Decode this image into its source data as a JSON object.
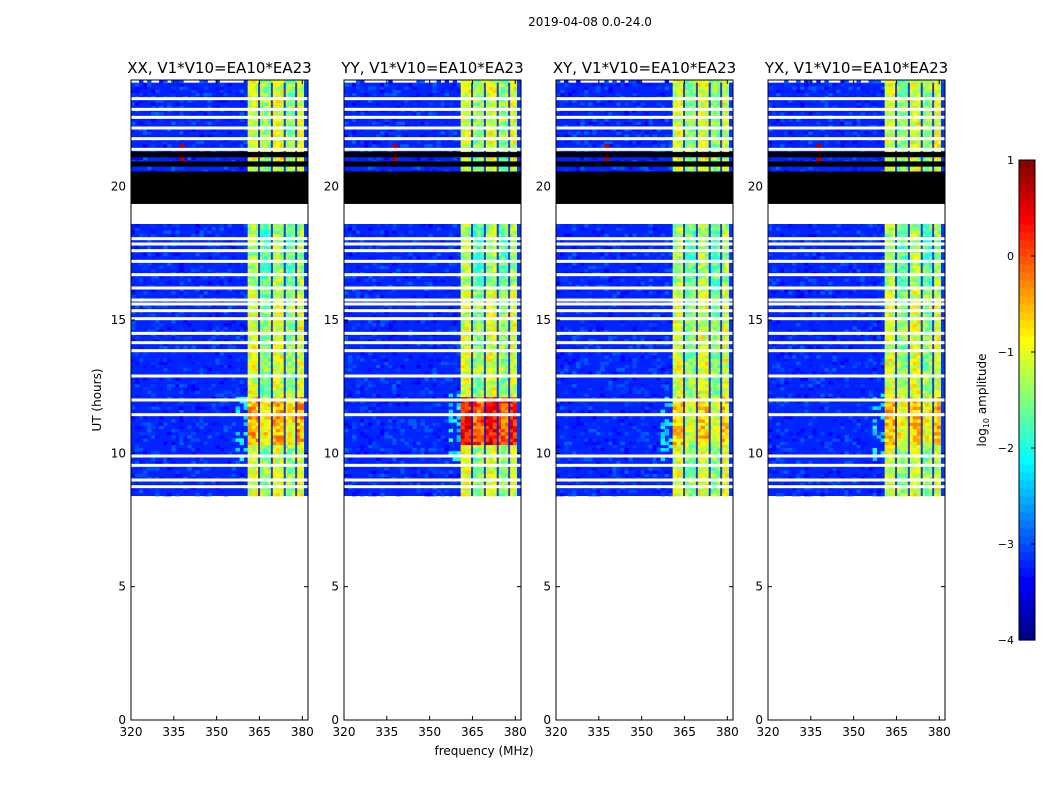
{
  "chart_data": {
    "type": "heatmap",
    "suptitle": "2019-04-08 0.0-24.0",
    "xlabel": "frequency (MHz)",
    "ylabel": "UT (hours)",
    "xlim": [
      320,
      382
    ],
    "ylim": [
      0,
      24
    ],
    "x_ticks": [
      320,
      335,
      350,
      365,
      380
    ],
    "x_tick_labels": [
      "320",
      "335",
      "350",
      "365",
      "380"
    ],
    "y_ticks": [
      0,
      5,
      10,
      15,
      20
    ],
    "y_tick_labels": [
      "0",
      "5",
      "10",
      "15",
      "20"
    ],
    "colormap": "jet",
    "colorbar": {
      "label": "log10 amplitude",
      "label_parts": [
        "log",
        "10",
        " amplitude"
      ],
      "range": [
        -4,
        1
      ],
      "ticks": [
        -4,
        -3,
        -2,
        -1,
        0,
        1
      ],
      "tick_labels": [
        "−4",
        "−3",
        "−2",
        "−1",
        "0",
        "1"
      ]
    },
    "data_start_hour": 8.4,
    "data_end_hour": 23.9,
    "rfi_band_mhz": [
      361.5,
      380.5
    ],
    "rfi_peak_hours": [
      10.2,
      12.0
    ],
    "blank_gap_hours": [
      18.6,
      19.4
    ],
    "panels": [
      {
        "title": "XX, V1*V10=EA10*EA23",
        "polarization": "XX"
      },
      {
        "title": "YY, V1*V10=EA10*EA23",
        "polarization": "YY"
      },
      {
        "title": "XY, V1*V10=EA10*EA23",
        "polarization": "XY"
      },
      {
        "title": "YX, V1*V10=EA10*EA23",
        "polarization": "YX"
      }
    ]
  }
}
